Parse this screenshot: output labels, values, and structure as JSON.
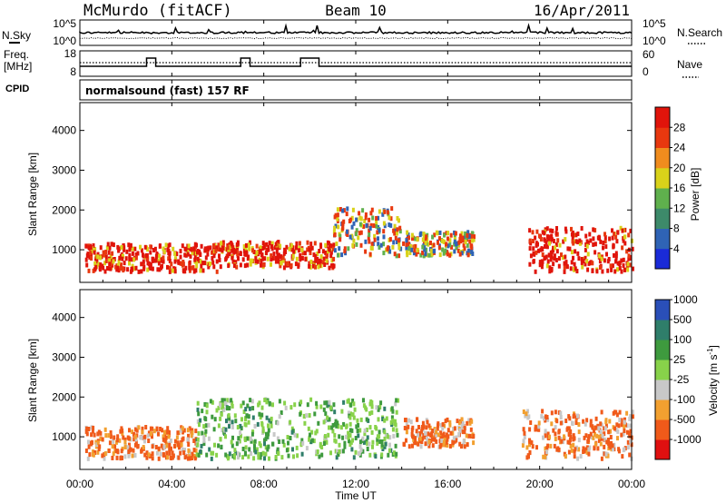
{
  "header": {
    "station": "McMurdo (fitACF)",
    "beam": "Beam 10",
    "date": "16/Apr/2011"
  },
  "noise_panel": {
    "left_label": "N.Sky",
    "left_ticks": [
      "10^5",
      "10^0"
    ],
    "right_ticks": [
      "10^5",
      "10^0"
    ],
    "right_label": "N.Search"
  },
  "freq_panel": {
    "left_label_line1": "Freq.",
    "left_label_line2": "[MHz]",
    "left_ticks": [
      "18",
      "8"
    ],
    "right_ticks": [
      "60",
      "0"
    ],
    "right_label": "Nave"
  },
  "cpid": {
    "label": "CPID",
    "program": "normalsound (fast) 157 RF"
  },
  "x_axis": {
    "ticks": [
      "00:00",
      "04:00",
      "08:00",
      "12:00",
      "16:00",
      "20:00",
      "00:00"
    ],
    "label": "Time UT"
  },
  "power_panel": {
    "ylabel": "Slant Range [km]",
    "yticks": [
      "1000",
      "2000",
      "3000",
      "4000"
    ],
    "colorbar_label": "Power [dB]",
    "colorbar_ticks": [
      "4",
      "8",
      "12",
      "16",
      "20",
      "24",
      "28"
    ],
    "colors": [
      "#1a2bd8",
      "#2f63b5",
      "#3d8a6a",
      "#5fb04d",
      "#d9d21a",
      "#f08c1e",
      "#e8380f",
      "#e0140b"
    ]
  },
  "velocity_panel": {
    "ylabel": "Slant Range [km]",
    "yticks": [
      "1000",
      "2000",
      "3000",
      "4000"
    ],
    "colorbar_label": "Velocity [m s",
    "colorbar_label_sup": "-1",
    "colorbar_label_end": "]",
    "colorbar_ticks": [
      "-1000",
      "-500",
      "-100",
      "-25",
      "25",
      "100",
      "500",
      "1000"
    ],
    "colors": [
      "#e01010",
      "#f05a1a",
      "#f2a030",
      "#c8c8c8",
      "#88d24a",
      "#3e9a3e",
      "#2f7e6a",
      "#2a4fb8"
    ]
  },
  "chart_data": {
    "type": "heatmap",
    "x_range_hours": [
      0,
      24
    ],
    "y_range_km": [
      180,
      4700
    ],
    "power_scatter_bands": [
      {
        "t": [
          0.2,
          6.0
        ],
        "r": [
          500,
          1200
        ],
        "level": "high"
      },
      {
        "t": [
          6.0,
          11.0
        ],
        "r": [
          600,
          1250
        ],
        "level": "high"
      },
      {
        "t": [
          11.0,
          13.9
        ],
        "r": [
          900,
          2100
        ],
        "level": "medium"
      },
      {
        "t": [
          14.0,
          17.1
        ],
        "r": [
          900,
          1500
        ],
        "level": "medium"
      },
      {
        "t": [
          19.5,
          24.0
        ],
        "r": [
          500,
          1600
        ],
        "level": "high"
      }
    ],
    "velocity_scatter_bands": [
      {
        "t": [
          0.2,
          5.0
        ],
        "r": [
          500,
          1300
        ],
        "sign": "negative"
      },
      {
        "t": [
          5.0,
          13.8
        ],
        "r": [
          500,
          2000
        ],
        "sign": "positive"
      },
      {
        "t": [
          14.0,
          17.1
        ],
        "r": [
          800,
          1500
        ],
        "sign": "negative"
      },
      {
        "t": [
          19.2,
          24.0
        ],
        "r": [
          500,
          1700
        ],
        "sign": "negative"
      }
    ]
  }
}
